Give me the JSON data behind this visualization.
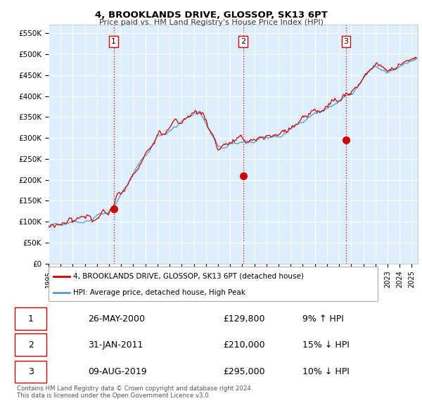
{
  "title": "4, BROOKLANDS DRIVE, GLOSSOP, SK13 6PT",
  "subtitle": "Price paid vs. HM Land Registry's House Price Index (HPI)",
  "ylim": [
    0,
    570000
  ],
  "yticks": [
    0,
    50000,
    100000,
    150000,
    200000,
    250000,
    300000,
    350000,
    400000,
    450000,
    500000,
    550000
  ],
  "xlim_start": 1995.0,
  "xlim_end": 2025.5,
  "plot_bg_color": "#ddeeff",
  "background_color": "#ffffff",
  "grid_color": "#ffffff",
  "hpi_color": "#5599cc",
  "price_color": "#cc0000",
  "sale_marker_color": "#cc0000",
  "sale_points": [
    {
      "date_num": 2000.38,
      "price": 129800,
      "label": "1"
    },
    {
      "date_num": 2011.08,
      "price": 210000,
      "label": "2"
    },
    {
      "date_num": 2019.58,
      "price": 295000,
      "label": "3"
    }
  ],
  "vline_color": "#cc0000",
  "legend_items": [
    {
      "label": "4, BROOKLANDS DRIVE, GLOSSOP, SK13 6PT (detached house)",
      "color": "#cc0000"
    },
    {
      "label": "HPI: Average price, detached house, High Peak",
      "color": "#5599cc"
    }
  ],
  "table_rows": [
    {
      "num": "1",
      "date": "26-MAY-2000",
      "price": "£129,800",
      "hpi": "9% ↑ HPI"
    },
    {
      "num": "2",
      "date": "31-JAN-2011",
      "price": "£210,000",
      "hpi": "15% ↓ HPI"
    },
    {
      "num": "3",
      "date": "09-AUG-2019",
      "price": "£295,000",
      "hpi": "10% ↓ HPI"
    }
  ],
  "footnote": "Contains HM Land Registry data © Crown copyright and database right 2024.\nThis data is licensed under the Open Government Licence v3.0."
}
